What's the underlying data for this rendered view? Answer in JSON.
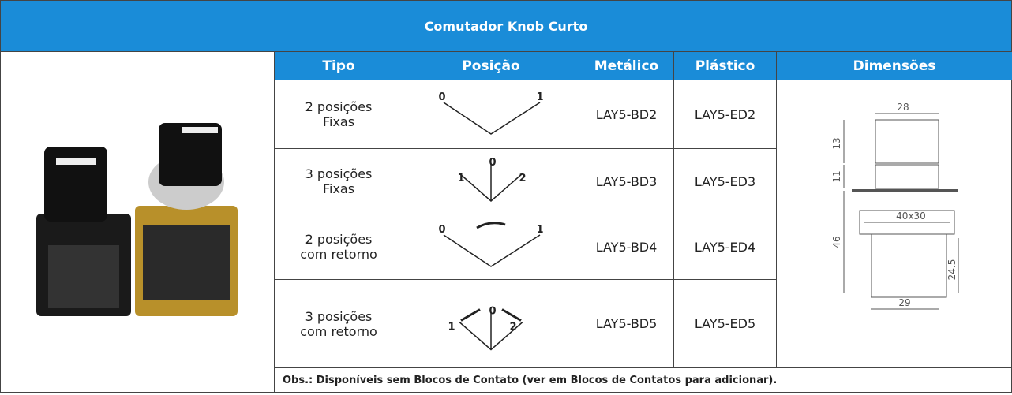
{
  "title": "Comutador Knob  Curto",
  "table": {
    "headers": [
      "Tipo",
      "Posição",
      "Metálico",
      "Plástico",
      "Dimensões"
    ],
    "rows": [
      {
        "tipo": [
          "2 posições",
          "Fixas"
        ],
        "position_labels": [
          "0",
          "1"
        ],
        "metalico": "LAY5-BD2",
        "plastico": "LAY5-ED2"
      },
      {
        "tipo": [
          "3 posições",
          "Fixas"
        ],
        "position_labels": [
          "1",
          "0",
          "2"
        ],
        "metalico": "LAY5-BD3",
        "plastico": "LAY5-ED3"
      },
      {
        "tipo": [
          "2 posições",
          "com retorno"
        ],
        "position_labels": [
          "0",
          "1"
        ],
        "metalico": "LAY5-BD4",
        "plastico": "LAY5-ED4"
      },
      {
        "tipo": [
          "3 posições",
          "com retorno"
        ],
        "position_labels": [
          "1",
          "0",
          "2"
        ],
        "metalico": "LAY5-BD5",
        "plastico": "LAY5-ED5"
      }
    ],
    "dimension_labels": [
      "28",
      "13",
      "11",
      "40x30",
      "46",
      "24.5",
      "29"
    ],
    "note": "Obs.: Disponíveis sem Blocos de Contato (ver em Blocos de Contatos para adicionar)."
  }
}
